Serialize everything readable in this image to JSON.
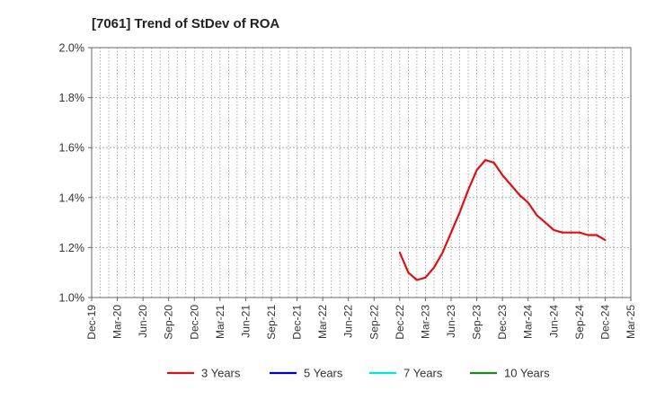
{
  "chart_data": {
    "type": "line",
    "title": "[7061]  Trend of StDev of ROA",
    "xlabel": "",
    "ylabel": "",
    "ylim": [
      1.0,
      2.0
    ],
    "y_ticks": [
      "1.0%",
      "1.2%",
      "1.4%",
      "1.6%",
      "1.8%",
      "2.0%"
    ],
    "y_tick_values": [
      1.0,
      1.2,
      1.4,
      1.6,
      1.8,
      2.0
    ],
    "x_tick_labels": [
      "Dec-19",
      "Mar-20",
      "Jun-20",
      "Sep-20",
      "Dec-20",
      "Mar-21",
      "Jun-21",
      "Sep-21",
      "Dec-21",
      "Mar-22",
      "Jun-22",
      "Sep-22",
      "Dec-22",
      "Mar-23",
      "Jun-23",
      "Sep-23",
      "Dec-23",
      "Mar-24",
      "Jun-24",
      "Sep-24",
      "Dec-24",
      "Mar-25"
    ],
    "grid": true,
    "legend_position": "bottom",
    "series": [
      {
        "name": "3 Years",
        "color": "#dd1111",
        "x": [
          "Dec-22",
          "Jan-23",
          "Feb-23",
          "Mar-23",
          "Apr-23",
          "May-23",
          "Jun-23",
          "Jul-23",
          "Aug-23",
          "Sep-23",
          "Oct-23",
          "Nov-23",
          "Dec-23",
          "Jan-24",
          "Feb-24",
          "Mar-24",
          "Apr-24",
          "May-24",
          "Jun-24",
          "Jul-24",
          "Aug-24",
          "Sep-24",
          "Oct-24",
          "Nov-24",
          "Dec-24"
        ],
        "values": [
          1.18,
          1.1,
          1.07,
          1.08,
          1.12,
          1.18,
          1.26,
          1.34,
          1.43,
          1.51,
          1.55,
          1.54,
          1.49,
          1.45,
          1.41,
          1.38,
          1.33,
          1.3,
          1.27,
          1.26,
          1.26,
          1.26,
          1.25,
          1.25,
          1.23
        ]
      },
      {
        "name": "5 Years",
        "color": "#0000cc",
        "x": [],
        "values": []
      },
      {
        "name": "7 Years",
        "color": "#00e5ee",
        "x": [],
        "values": []
      },
      {
        "name": "10 Years",
        "color": "#1a8a1a",
        "x": [],
        "values": []
      }
    ]
  }
}
